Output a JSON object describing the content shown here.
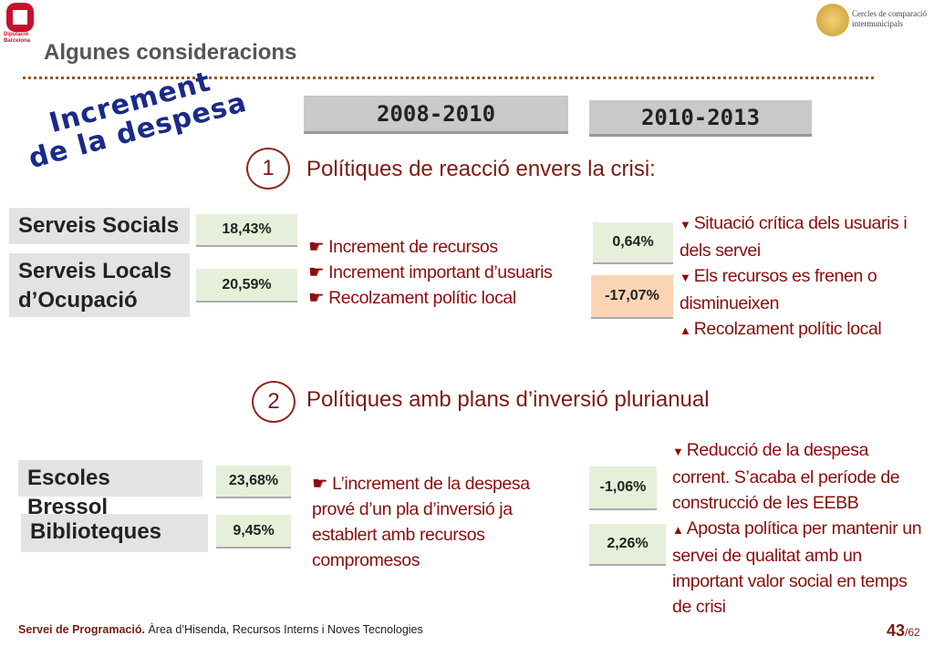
{
  "header": {
    "logo": [
      "Diputació",
      "Barcelona"
    ],
    "title": "Algunes consideracions",
    "brand": [
      "Cercles de comparació",
      "intermunicipals"
    ]
  },
  "stamp": [
    "Increment",
    "de la despesa"
  ],
  "periods": [
    "2008-2010",
    "2010-2013"
  ],
  "sections": [
    {
      "number": "1",
      "title": "Polítiques de reacció envers la crisi:",
      "services": [
        "Serveis Socials",
        "Serveis Locals d’Ocupació"
      ],
      "first_period": [
        "18,43%",
        "20,59%"
      ],
      "second_period": [
        "0,64%",
        "-17,07%"
      ],
      "first_notes": [
        "Increment de recursos",
        "Increment important d’usuaris",
        "Recolzament polític local"
      ],
      "second_notes": [
        "Situació crítica dels usuaris i dels servei",
        "Els recursos es frenen o disminueixen",
        "Recolzament polític local"
      ]
    },
    {
      "number": "2",
      "title": "Polítiques amb plans d’inversió plurianual",
      "services": [
        "Escoles Bressol",
        "Biblioteques"
      ],
      "first_period": [
        "23,68%",
        "9,45%"
      ],
      "second_period": [
        "-1,06%",
        "2,26%"
      ],
      "first_notes": [
        "L’increment de la despesa prové d’un pla d’inversió ja establert amb recursos compromesos"
      ],
      "second_notes": [
        "Reducció de la despesa corrent. S’acaba el període de construcció de les EEBB",
        "Aposta política per mantenir un servei de qualitat amb un important valor social en temps de crisi"
      ]
    }
  ],
  "footer": {
    "unit": "Servei de Programació.",
    "area": "Àrea d’Hisenda, Recursos Interns i Noves Tecnologies",
    "page": "43",
    "total": "/62"
  }
}
